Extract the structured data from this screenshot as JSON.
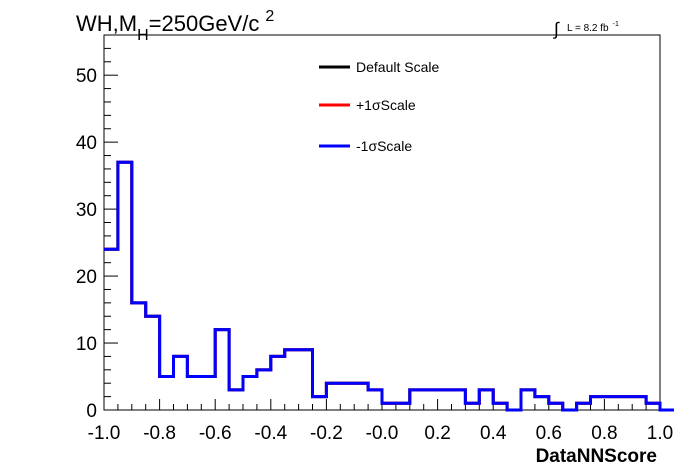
{
  "chart_data": {
    "type": "line",
    "title_main": "WH,M",
    "title_sub": "H",
    "title_rest": "=250GeV/c",
    "title_sup": "2",
    "lumi_text": "L = 8.2 fb",
    "lumi_sup": "-1",
    "xlabel": "DataNNScore",
    "xlim": [
      -1.0,
      1.0
    ],
    "ylim": [
      0,
      56
    ],
    "x_ticks": [
      "-1.0",
      "-0.8",
      "-0.6",
      "-0.4",
      "-0.2",
      "-0.0",
      "0.2",
      "0.4",
      "0.6",
      "0.8",
      "1.0"
    ],
    "y_ticks": [
      "0",
      "10",
      "20",
      "30",
      "40",
      "50"
    ],
    "bin_width": 0.05,
    "bin_edges_start": -1.0,
    "legend_position": "top-center",
    "series": [
      {
        "name": "Default Scale",
        "color": "#000000",
        "values": [
          24,
          37,
          16,
          14,
          5,
          8,
          5,
          5,
          12,
          3,
          5,
          6,
          8,
          9,
          9,
          2,
          4,
          4,
          4,
          3,
          1,
          1,
          3,
          3,
          3,
          3,
          1,
          3,
          1,
          0,
          3,
          2,
          1,
          0,
          1,
          2,
          2,
          2,
          2,
          1,
          0
        ]
      },
      {
        "name": "+1σScale",
        "color": "#ff0000",
        "values": [
          24,
          37,
          16,
          14,
          5,
          8,
          5,
          5,
          12,
          3,
          5,
          6,
          8,
          9,
          9,
          2,
          4,
          4,
          4,
          3,
          1,
          1,
          3,
          3,
          3,
          3,
          1,
          3,
          1,
          0,
          3,
          2,
          1,
          0,
          1,
          2,
          2,
          2,
          2,
          1,
          0
        ]
      },
      {
        "name": "-1σScale",
        "color": "#0000ff",
        "values": [
          24,
          37,
          16,
          14,
          5,
          8,
          5,
          5,
          12,
          3,
          5,
          6,
          8,
          9,
          9,
          2,
          4,
          4,
          4,
          3,
          1,
          1,
          3,
          3,
          3,
          3,
          1,
          3,
          1,
          0,
          3,
          2,
          1,
          0,
          1,
          2,
          2,
          2,
          2,
          1,
          0
        ]
      }
    ]
  }
}
